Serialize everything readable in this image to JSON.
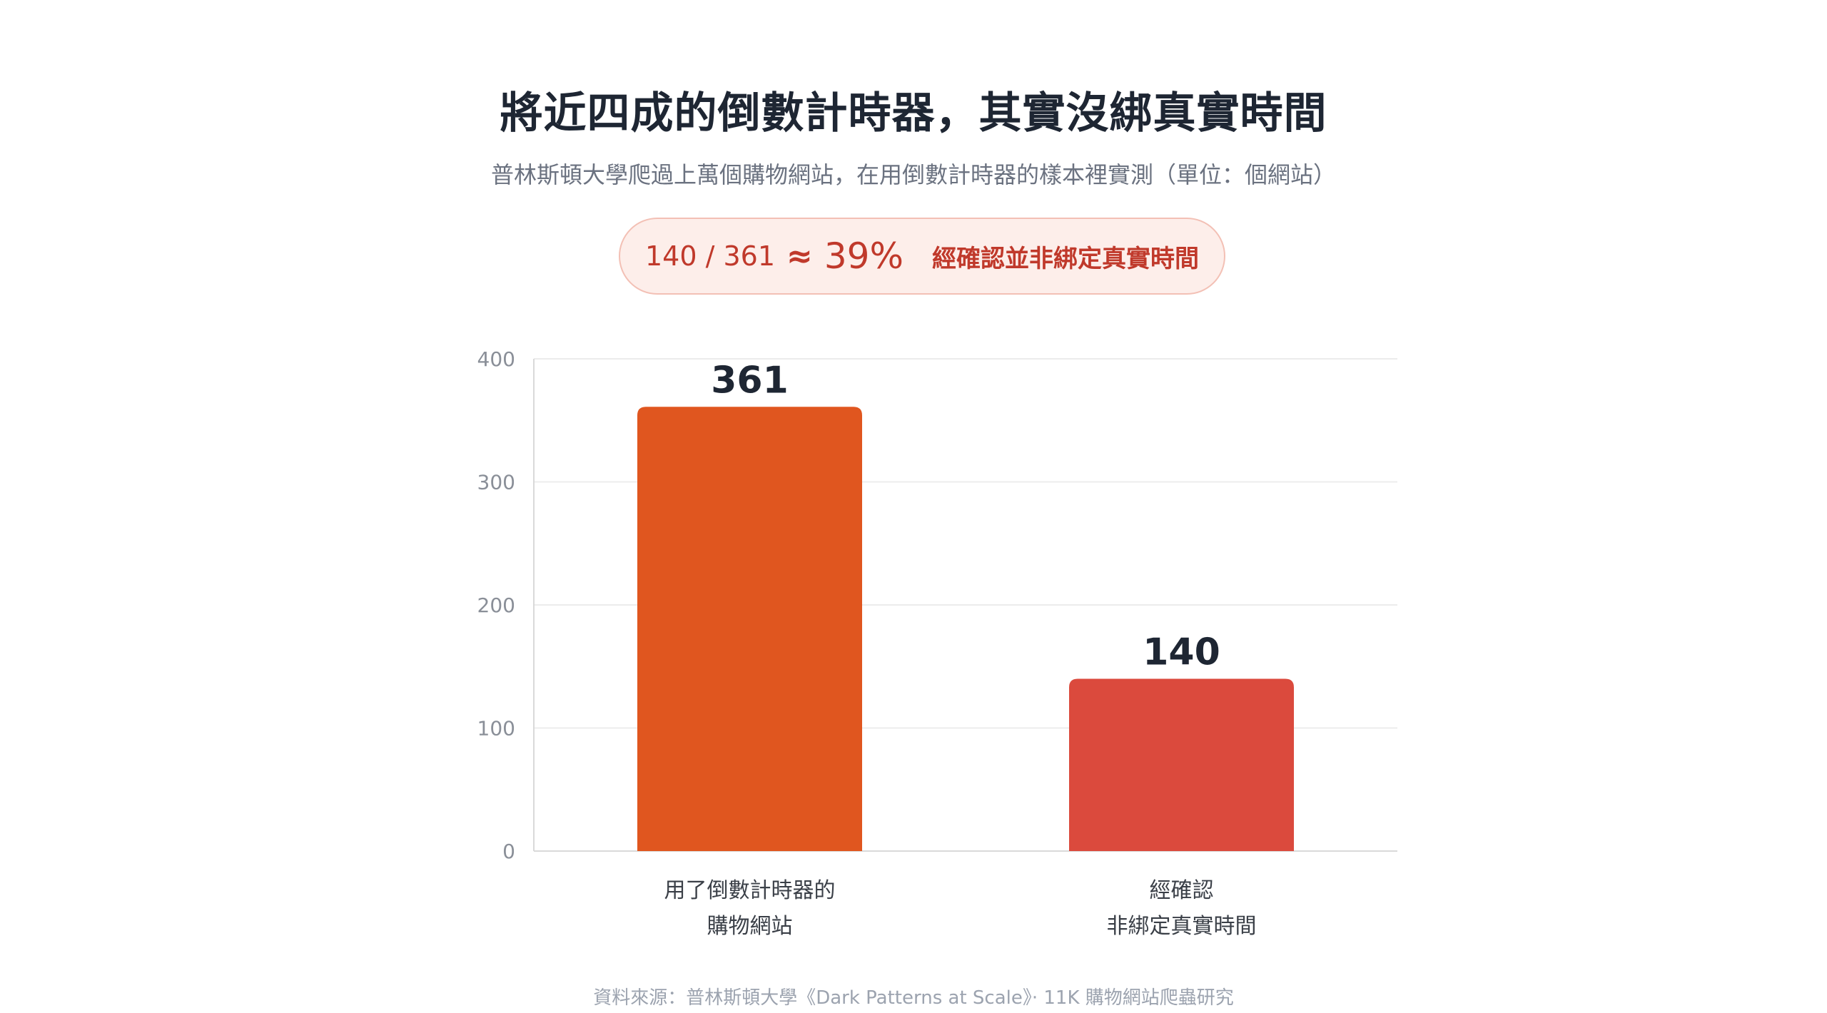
{
  "title": "將近四成的倒數計時器，其實沒綁真實時間",
  "subtitle": "普林斯頓大學爬過上萬個購物網站，在用倒數計時器的樣本裡實測（單位：個網站）",
  "highlight": {
    "ratio": "140 / 361",
    "approx": "≈",
    "percent": "39%",
    "caption": "經確認並非綁定真實時間"
  },
  "source": "資料來源：普林斯頓大學《Dark Patterns at Scale》· 11K 購物網站爬蟲研究",
  "colors": {
    "bar1": "#e0561f",
    "bar2": "#db4a3d",
    "grid": "#ececec",
    "axis": "#d9d9d9"
  },
  "chart_data": {
    "type": "bar",
    "categories": [
      [
        "用了倒數計時器的",
        "購物網站"
      ],
      [
        "經確認",
        "非綁定真實時間"
      ]
    ],
    "values": [
      361,
      140
    ],
    "ylim": [
      0,
      400
    ],
    "yticks": [
      0,
      100,
      200,
      300,
      400
    ],
    "grid": true,
    "legend": "none"
  }
}
